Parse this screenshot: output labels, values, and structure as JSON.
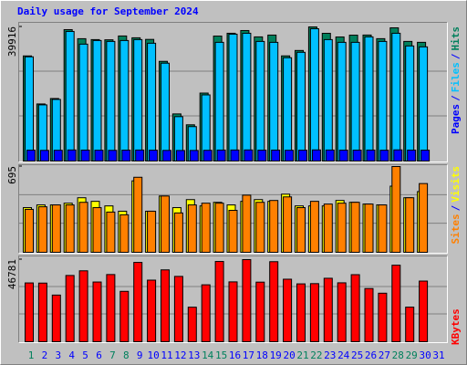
{
  "chart_data": [
    {
      "type": "bar",
      "title": "Daily usage for September 2024",
      "legend_separator": "/",
      "ylim": [
        0,
        39916
      ],
      "yticks": [
        39916
      ],
      "series": [
        {
          "name": "Hits",
          "color": "#00805c",
          "values": [
            31285,
            16991,
            18609,
            39107,
            36410,
            36140,
            36080,
            37219,
            36679,
            36200,
            29667,
            14024,
            10788,
            20228,
            37190,
            38028,
            38837,
            36949,
            37488,
            31300,
            32904,
            39916,
            38010,
            36920,
            37460,
            37500,
            36420,
            39646,
            35601,
            35331,
            null
          ]
        },
        {
          "name": "Files",
          "color": "#00c0ff",
          "values": [
            31016,
            16721,
            18340,
            38567,
            34791,
            35871,
            35601,
            35870,
            36140,
            35061,
            29128,
            13215,
            10249,
            19688,
            35331,
            37758,
            38028,
            35600,
            35330,
            30746,
            32364,
            39376,
            36140,
            35330,
            35330,
            36949,
            35600,
            38028,
            34252,
            33982,
            null
          ]
        },
        {
          "name": "Pages",
          "color": "#0000ff",
          "values": [
            3240,
            3180,
            3210,
            3300,
            3260,
            3220,
            3190,
            3250,
            3280,
            3230,
            3170,
            3150,
            3160,
            3200,
            3270,
            3290,
            3310,
            3240,
            3260,
            3210,
            3230,
            3320,
            3280,
            3240,
            3250,
            3270,
            3220,
            3330,
            3260,
            3240,
            null
          ]
        }
      ]
    },
    {
      "type": "bar",
      "ylim": [
        0,
        695
      ],
      "yticks": [
        695
      ],
      "series": [
        {
          "name": "Visits",
          "color": "#ffff00",
          "values": [
            362,
            384,
            384,
            398,
            442,
            413,
            376,
            333,
            579,
            333,
            456,
            362,
            427,
            376,
            405,
            384,
            413,
            427,
            413,
            471,
            376,
            376,
            376,
            420,
            405,
            391,
            384,
            536,
            442,
            492,
            null
          ]
        },
        {
          "name": "Sites",
          "color": "#ff8000",
          "values": [
            348,
            369,
            384,
            384,
            405,
            362,
            326,
            304,
            608,
            333,
            456,
            319,
            384,
            398,
            398,
            340,
            463,
            405,
            420,
            449,
            362,
            413,
            391,
            398,
            405,
            391,
            384,
            695,
            442,
            557,
            null
          ]
        }
      ]
    },
    {
      "type": "bar",
      "ylim": [
        0,
        46781
      ],
      "yticks": [
        46781
      ],
      "categories": [
        "1",
        "2",
        "3",
        "4",
        "5",
        "6",
        "7",
        "8",
        "9",
        "10",
        "11",
        "12",
        "13",
        "14",
        "15",
        "16",
        "17",
        "18",
        "19",
        "20",
        "21",
        "22",
        "23",
        "24",
        "25",
        "26",
        "27",
        "28",
        "29",
        "30",
        "31"
      ],
      "category_colors": [
        "#00805c",
        "#0000ff",
        "#0000ff",
        "#0000ff",
        "#0000ff",
        "#0000ff",
        "#00805c",
        "#00805c",
        "#0000ff",
        "#0000ff",
        "#0000ff",
        "#0000ff",
        "#0000ff",
        "#00805c",
        "#00805c",
        "#0000ff",
        "#0000ff",
        "#0000ff",
        "#0000ff",
        "#0000ff",
        "#00805c",
        "#00805c",
        "#0000ff",
        "#0000ff",
        "#0000ff",
        "#0000ff",
        "#0000ff",
        "#00805c",
        "#00805c",
        "#0000ff",
        "#0000ff"
      ],
      "series": [
        {
          "name": "KBytes",
          "color": "#ff0000",
          "values": [
            33491,
            33400,
            26580,
            37744,
            40402,
            34022,
            38275,
            28706,
            45186,
            35086,
            40933,
            37212,
            19669,
            32428,
            45718,
            34100,
            46781,
            33950,
            45600,
            35617,
            32959,
            33100,
            36149,
            33560,
            38200,
            30301,
            27643,
            43591,
            19700,
            34554,
            null
          ]
        }
      ]
    }
  ]
}
